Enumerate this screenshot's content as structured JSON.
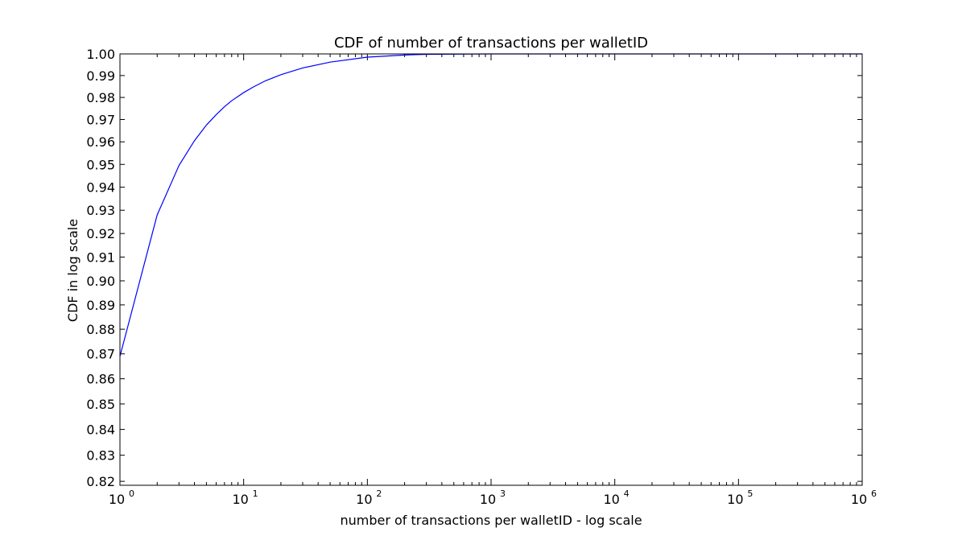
{
  "chart_data": {
    "type": "line",
    "title": "CDF of number of transactions per walletID",
    "xlabel": "number of transactions per walletID - log scale",
    "ylabel": "CDF in log scale",
    "xscale": "log",
    "yscale": "log",
    "xlim": [
      1,
      1000000
    ],
    "ylim": [
      0.8185,
      1.0
    ],
    "grid": false,
    "x_ticks": [
      {
        "base": "10",
        "exp": "0",
        "value": 1
      },
      {
        "base": "10",
        "exp": "1",
        "value": 10
      },
      {
        "base": "10",
        "exp": "2",
        "value": 100
      },
      {
        "base": "10",
        "exp": "3",
        "value": 1000
      },
      {
        "base": "10",
        "exp": "4",
        "value": 10000
      },
      {
        "base": "10",
        "exp": "5",
        "value": 100000
      },
      {
        "base": "10",
        "exp": "6",
        "value": 1000000
      }
    ],
    "y_ticks": [
      "1.00",
      "0.99",
      "0.98",
      "0.97",
      "0.96",
      "0.95",
      "0.94",
      "0.93",
      "0.92",
      "0.91",
      "0.90",
      "0.89",
      "0.88",
      "0.87",
      "0.86",
      "0.85",
      "0.84",
      "0.83",
      "0.82"
    ],
    "series": [
      {
        "color": "#0000ff",
        "x": [
          1,
          2,
          3,
          4,
          5,
          6,
          7,
          8,
          10,
          12,
          15,
          20,
          30,
          50,
          100,
          200,
          300,
          500,
          1000
        ],
        "y": [
          0.869,
          0.928,
          0.9495,
          0.9605,
          0.9675,
          0.9722,
          0.9758,
          0.9785,
          0.9822,
          0.9848,
          0.9876,
          0.9904,
          0.9935,
          0.9962,
          0.9985,
          0.9995,
          0.9998,
          0.9999,
          1.0
        ]
      }
    ]
  }
}
